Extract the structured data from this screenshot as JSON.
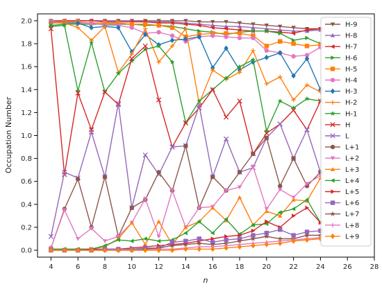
{
  "chart_data": {
    "type": "line",
    "title": "",
    "xlabel": "n",
    "ylabel": "Occupation Number",
    "xlim": [
      3,
      28
    ],
    "ylim": [
      -0.06,
      2.06
    ],
    "xticks": [
      "4",
      "6",
      "8",
      "10",
      "12",
      "14",
      "16",
      "18",
      "20",
      "22",
      "24",
      "26",
      "28"
    ],
    "yticks": [
      "0.0",
      "0.2",
      "0.4",
      "0.6",
      "0.8",
      "1.0",
      "1.2",
      "1.4",
      "1.6",
      "1.8",
      "2.0"
    ],
    "grid": false,
    "legend": "right",
    "x": [
      4,
      5,
      6,
      7,
      8,
      9,
      10,
      11,
      12,
      13,
      14,
      15,
      16,
      17,
      18,
      19,
      20,
      21,
      22,
      23,
      24
    ],
    "series": [
      {
        "name": "H-9",
        "color": "#8c564b",
        "marker": "v",
        "values": [
          2.0,
          2.0,
          2.0,
          2.0,
          2.0,
          2.0,
          2.0,
          2.0,
          2.0,
          2.0,
          2.0,
          1.99,
          1.99,
          1.99,
          1.98,
          1.97,
          1.96,
          1.95,
          1.94,
          1.93,
          1.93
        ]
      },
      {
        "name": "H-8",
        "color": "#9467bd",
        "marker": "^",
        "values": [
          2.0,
          2.0,
          2.0,
          2.0,
          2.0,
          2.0,
          2.0,
          1.99,
          1.99,
          1.99,
          1.98,
          1.97,
          1.96,
          1.95,
          1.95,
          1.94,
          1.93,
          1.92,
          1.91,
          1.91,
          1.92
        ]
      },
      {
        "name": "H-7",
        "color": "#d62728",
        "marker": "<",
        "values": [
          1.99,
          2.0,
          2.0,
          2.0,
          1.99,
          1.99,
          1.99,
          1.99,
          1.98,
          1.98,
          1.97,
          1.96,
          1.94,
          1.93,
          1.92,
          1.91,
          1.91,
          1.9,
          1.89,
          1.92,
          1.93
        ]
      },
      {
        "name": "H-6",
        "color": "#2ca02c",
        "marker": ">",
        "values": [
          1.96,
          1.97,
          1.97,
          1.97,
          1.97,
          1.97,
          1.97,
          1.96,
          1.96,
          1.95,
          1.93,
          1.91,
          1.9,
          1.88,
          1.9,
          1.91,
          1.91,
          1.89,
          1.83,
          1.85,
          1.8
        ]
      },
      {
        "name": "H-5",
        "color": "#ff7f0e",
        "marker": "s",
        "values": [
          1.99,
          1.99,
          1.99,
          1.98,
          1.98,
          1.98,
          1.97,
          1.97,
          1.96,
          1.94,
          1.86,
          1.88,
          1.89,
          1.89,
          1.89,
          1.87,
          1.78,
          1.82,
          1.8,
          1.78,
          1.79
        ]
      },
      {
        "name": "H-4",
        "color": "#e377c2",
        "marker": "o",
        "values": [
          1.99,
          1.98,
          1.98,
          1.98,
          1.96,
          1.96,
          1.94,
          1.89,
          1.9,
          1.87,
          1.82,
          1.86,
          1.87,
          1.86,
          1.85,
          1.85,
          1.74,
          1.72,
          1.69,
          1.7,
          1.77
        ]
      },
      {
        "name": "H-3",
        "color": "#1f77b4",
        "marker": "D",
        "values": [
          1.98,
          1.98,
          1.98,
          1.94,
          1.95,
          1.94,
          1.73,
          1.88,
          1.79,
          1.83,
          1.84,
          1.86,
          1.59,
          1.76,
          1.57,
          1.64,
          1.68,
          1.72,
          1.52,
          1.67,
          1.4
        ]
      },
      {
        "name": "H-2",
        "color": "#ff7f0e",
        "marker": "+",
        "values": [
          1.98,
          1.98,
          1.94,
          1.83,
          1.95,
          1.55,
          1.71,
          1.93,
          1.64,
          1.78,
          1.93,
          1.28,
          1.57,
          1.49,
          1.55,
          1.74,
          1.45,
          1.51,
          1.31,
          1.44,
          1.38
        ]
      },
      {
        "name": "H-1",
        "color": "#2ca02c",
        "marker": "*",
        "values": [
          1.95,
          1.96,
          1.39,
          1.81,
          1.38,
          1.54,
          1.65,
          1.75,
          1.78,
          1.64,
          1.11,
          1.3,
          1.4,
          1.5,
          1.6,
          1.66,
          1.04,
          1.3,
          1.24,
          1.32,
          1.3
        ]
      },
      {
        "name": "H",
        "color": "#d62728",
        "marker": "x",
        "values": [
          1.93,
          0.66,
          1.37,
          1.05,
          1.38,
          1.27,
          1.67,
          1.78,
          1.31,
          0.9,
          1.11,
          1.24,
          1.4,
          1.16,
          1.3,
          0.84,
          1.02,
          1.1,
          1.22,
          1.05,
          1.3
        ]
      },
      {
        "name": "L",
        "color": "#9467bd",
        "marker": "x",
        "values": [
          0.12,
          0.68,
          0.63,
          1.03,
          0.64,
          1.28,
          0.37,
          0.83,
          0.66,
          0.9,
          0.91,
          1.26,
          0.64,
          0.97,
          0.68,
          0.72,
          0.98,
          1.1,
          0.8,
          1.05,
          0.68
        ]
      },
      {
        "name": "L+1",
        "color": "#8c564b",
        "marker": "o",
        "values": [
          0.02,
          0.36,
          0.62,
          0.2,
          0.64,
          0.12,
          0.37,
          0.44,
          0.68,
          0.52,
          0.91,
          0.37,
          0.64,
          0.52,
          0.68,
          0.84,
          0.98,
          0.56,
          0.8,
          0.56,
          0.68
        ]
      },
      {
        "name": "L+2",
        "color": "#e377c2",
        "marker": "v",
        "values": [
          0.02,
          0.35,
          0.1,
          0.19,
          0.08,
          0.12,
          0.24,
          0.45,
          0.12,
          0.52,
          0.2,
          0.37,
          0.38,
          0.52,
          0.55,
          0.73,
          0.36,
          0.53,
          0.46,
          0.58,
          0.65
        ]
      },
      {
        "name": "L+3",
        "color": "#ff7f0e",
        "marker": "^",
        "values": [
          0.01,
          0.01,
          0.01,
          0.01,
          0.03,
          0.1,
          0.24,
          0.05,
          0.25,
          0.05,
          0.2,
          0.25,
          0.37,
          0.26,
          0.46,
          0.22,
          0.34,
          0.3,
          0.44,
          0.43,
          0.63
        ]
      },
      {
        "name": "L+4",
        "color": "#2ca02c",
        "marker": "<",
        "values": [
          0.01,
          0.01,
          0.01,
          0.01,
          0.04,
          0.09,
          0.08,
          0.1,
          0.08,
          0.09,
          0.15,
          0.25,
          0.15,
          0.27,
          0.14,
          0.22,
          0.23,
          0.33,
          0.36,
          0.44,
          0.24
        ]
      },
      {
        "name": "L+5",
        "color": "#d62728",
        "marker": ">",
        "values": [
          0.0,
          0.0,
          0.0,
          0.01,
          0.01,
          0.01,
          0.02,
          0.03,
          0.04,
          0.05,
          0.06,
          0.08,
          0.1,
          0.12,
          0.13,
          0.17,
          0.25,
          0.2,
          0.3,
          0.37,
          0.24
        ]
      },
      {
        "name": "L+6",
        "color": "#9467bd",
        "marker": "s",
        "values": [
          0.0,
          0.0,
          0.0,
          0.0,
          0.01,
          0.01,
          0.01,
          0.02,
          0.02,
          0.07,
          0.08,
          0.1,
          0.07,
          0.09,
          0.1,
          0.13,
          0.15,
          0.18,
          0.13,
          0.16,
          0.17
        ]
      },
      {
        "name": "L+7",
        "color": "#8c564b",
        "marker": "*",
        "values": [
          0.0,
          0.0,
          0.0,
          0.0,
          0.0,
          0.0,
          0.0,
          0.01,
          0.02,
          0.04,
          0.05,
          0.06,
          0.05,
          0.06,
          0.08,
          0.1,
          0.12,
          0.1,
          0.1,
          0.13,
          0.13
        ]
      },
      {
        "name": "L+8",
        "color": "#e377c2",
        "marker": "+",
        "values": [
          0.0,
          0.0,
          0.0,
          0.0,
          0.0,
          0.0,
          0.0,
          0.0,
          0.01,
          0.01,
          0.02,
          0.03,
          0.03,
          0.04,
          0.05,
          0.06,
          0.07,
          0.08,
          0.09,
          0.1,
          0.11
        ]
      },
      {
        "name": "L+9",
        "color": "#ff7f0e",
        "marker": "D",
        "values": [
          0.0,
          0.0,
          0.0,
          0.0,
          0.0,
          0.0,
          0.0,
          0.0,
          0.0,
          0.0,
          0.01,
          0.01,
          0.01,
          0.02,
          0.03,
          0.04,
          0.05,
          0.06,
          0.08,
          0.09,
          0.1
        ]
      }
    ]
  }
}
